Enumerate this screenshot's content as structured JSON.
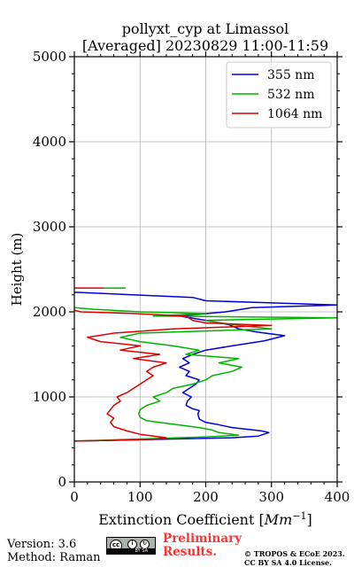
{
  "title_line1": "pollyxt_cyp at Limassol",
  "title_line2": "[Averaged] 20230829 11:00-11:59",
  "footer": {
    "version": "Version: 3.6",
    "method": "Method: Raman",
    "preliminary_line1": "Preliminary",
    "preliminary_line2": "Results.",
    "copyright_line1": "© TROPOS & ECoE 2023.",
    "copyright_line2": "CC BY SA 4.0 License.",
    "license_badge_text": "BY SA"
  },
  "chart_data": {
    "type": "line",
    "title": "pollyxt_cyp at Limassol\n[Averaged] 20230829 11:00-11:59",
    "xlabel": "Extinction Coefficient [Mm^-1]",
    "ylabel": "Height (m)",
    "xlim": [
      0,
      400
    ],
    "ylim": [
      0,
      5000
    ],
    "xticks": [
      0,
      100,
      200,
      300,
      400
    ],
    "yticks": [
      0,
      1000,
      2000,
      3000,
      4000,
      5000
    ],
    "grid": true,
    "legend_position": "top-right",
    "series": [
      {
        "name": "355 nm",
        "color": "#0000dd",
        "points": [
          [
            0,
            480
          ],
          [
            240,
            520
          ],
          [
            280,
            540
          ],
          [
            296,
            580
          ],
          [
            285,
            600
          ],
          [
            240,
            640
          ],
          [
            215,
            680
          ],
          [
            200,
            700
          ],
          [
            190,
            740
          ],
          [
            188,
            800
          ],
          [
            190,
            840
          ],
          [
            180,
            860
          ],
          [
            170,
            900
          ],
          [
            172,
            950
          ],
          [
            178,
            1000
          ],
          [
            165,
            1050
          ],
          [
            175,
            1100
          ],
          [
            185,
            1150
          ],
          [
            190,
            1200
          ],
          [
            170,
            1250
          ],
          [
            175,
            1300
          ],
          [
            160,
            1350
          ],
          [
            175,
            1400
          ],
          [
            165,
            1450
          ],
          [
            180,
            1500
          ],
          [
            200,
            1550
          ],
          [
            240,
            1600
          ],
          [
            290,
            1660
          ],
          [
            320,
            1720
          ],
          [
            280,
            1760
          ],
          [
            250,
            1800
          ],
          [
            235,
            1850
          ],
          [
            200,
            1900
          ],
          [
            160,
            1950
          ],
          [
            230,
            2000
          ],
          [
            270,
            2050
          ],
          [
            400,
            2080
          ],
          [
            280,
            2110
          ],
          [
            200,
            2130
          ],
          [
            180,
            2170
          ],
          [
            0,
            2230
          ]
        ]
      },
      {
        "name": "532 nm",
        "color": "#00b400",
        "points": [
          [
            0,
            480
          ],
          [
            200,
            530
          ],
          [
            250,
            550
          ],
          [
            220,
            580
          ],
          [
            210,
            610
          ],
          [
            190,
            640
          ],
          [
            150,
            680
          ],
          [
            110,
            720
          ],
          [
            100,
            760
          ],
          [
            98,
            800
          ],
          [
            100,
            850
          ],
          [
            110,
            900
          ],
          [
            130,
            950
          ],
          [
            120,
            1000
          ],
          [
            140,
            1050
          ],
          [
            150,
            1100
          ],
          [
            180,
            1150
          ],
          [
            200,
            1200
          ],
          [
            210,
            1250
          ],
          [
            240,
            1300
          ],
          [
            255,
            1350
          ],
          [
            220,
            1400
          ],
          [
            250,
            1450
          ],
          [
            170,
            1500
          ],
          [
            190,
            1550
          ],
          [
            150,
            1600
          ],
          [
            100,
            1650
          ],
          [
            70,
            1700
          ],
          [
            100,
            1750
          ],
          [
            300,
            1800
          ],
          [
            240,
            1850
          ],
          [
            200,
            1900
          ],
          [
            400,
            1930
          ],
          [
            120,
            1950
          ],
          [
            200,
            1980
          ],
          [
            100,
            2000
          ],
          [
            30,
            2030
          ],
          [
            0,
            2050
          ]
        ]
      },
      {
        "name": "1064 nm",
        "color": "#dd0000",
        "points": [
          [
            0,
            480
          ],
          [
            120,
            500
          ],
          [
            140,
            520
          ],
          [
            100,
            560
          ],
          [
            80,
            600
          ],
          [
            60,
            650
          ],
          [
            55,
            700
          ],
          [
            60,
            750
          ],
          [
            50,
            800
          ],
          [
            55,
            850
          ],
          [
            60,
            900
          ],
          [
            70,
            950
          ],
          [
            65,
            1000
          ],
          [
            80,
            1050
          ],
          [
            90,
            1100
          ],
          [
            100,
            1150
          ],
          [
            110,
            1200
          ],
          [
            120,
            1250
          ],
          [
            110,
            1300
          ],
          [
            120,
            1350
          ],
          [
            140,
            1400
          ],
          [
            90,
            1450
          ],
          [
            130,
            1500
          ],
          [
            70,
            1550
          ],
          [
            100,
            1600
          ],
          [
            40,
            1650
          ],
          [
            20,
            1700
          ],
          [
            60,
            1750
          ],
          [
            150,
            1800
          ],
          [
            300,
            1840
          ],
          [
            200,
            1870
          ],
          [
            180,
            1900
          ],
          [
            170,
            1950
          ],
          [
            90,
            1980
          ],
          [
            10,
            2000
          ],
          [
            0,
            2020
          ]
        ]
      },
      {
        "name": "",
        "color": "#dd0000",
        "points": [
          [
            0,
            2280
          ],
          [
            45,
            2280
          ]
        ]
      },
      {
        "name": "",
        "color": "#00b400",
        "points": [
          [
            45,
            2280
          ],
          [
            78,
            2280
          ]
        ]
      }
    ]
  }
}
